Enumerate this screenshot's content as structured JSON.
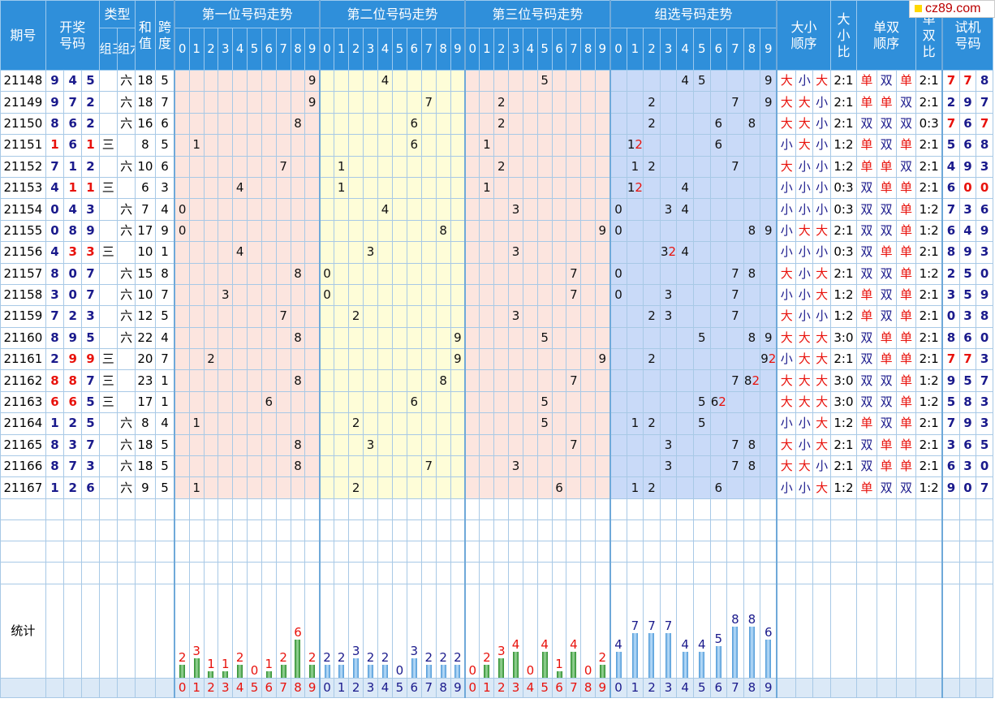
{
  "header": {
    "period": "期号",
    "draw": [
      "开奖",
      "号码"
    ],
    "type": "类型",
    "type_sub": [
      "组三",
      "组六"
    ],
    "sum": [
      "和",
      "值"
    ],
    "span": [
      "跨",
      "度"
    ],
    "pos1": "第一位号码走势",
    "pos2": "第二位号码走势",
    "pos3": "第三位号码走势",
    "group": "组选号码走势",
    "bs_order": [
      "大小",
      "顺序"
    ],
    "bs_ratio": [
      "大",
      "小",
      "比"
    ],
    "oe_order": [
      "单双",
      "顺序"
    ],
    "oe_ratio": [
      "单",
      "双",
      "比"
    ],
    "trial": [
      "试机",
      "号码"
    ],
    "digits": [
      "0",
      "1",
      "2",
      "3",
      "4",
      "5",
      "6",
      "7",
      "8",
      "9"
    ]
  },
  "rows": [
    {
      "p": "21148",
      "n": [
        "9",
        "4",
        "5"
      ],
      "nr": [
        0,
        0,
        0
      ],
      "t": "六",
      "s": "18",
      "k": "5",
      "bs": [
        "大",
        "小",
        "大"
      ],
      "bsr": "2:1",
      "oe": [
        "单",
        "双",
        "单"
      ],
      "oer": "2:1",
      "tr": [
        "7",
        "7",
        "8"
      ],
      "trr": [
        1,
        1,
        0
      ],
      "g": {
        "4": "4",
        "5": "5",
        "9": "9"
      }
    },
    {
      "p": "21149",
      "n": [
        "9",
        "7",
        "2"
      ],
      "nr": [
        0,
        0,
        0
      ],
      "t": "六",
      "s": "18",
      "k": "7",
      "bs": [
        "大",
        "大",
        "小"
      ],
      "bsr": "2:1",
      "oe": [
        "单",
        "单",
        "双"
      ],
      "oer": "2:1",
      "tr": [
        "2",
        "9",
        "7"
      ],
      "trr": [
        0,
        0,
        0
      ],
      "g": {
        "2": "2",
        "7": "7",
        "9": "9"
      }
    },
    {
      "p": "21150",
      "n": [
        "8",
        "6",
        "2"
      ],
      "nr": [
        0,
        0,
        0
      ],
      "t": "六",
      "s": "16",
      "k": "6",
      "bs": [
        "大",
        "大",
        "小"
      ],
      "bsr": "2:1",
      "oe": [
        "双",
        "双",
        "双"
      ],
      "oer": "0:3",
      "tr": [
        "7",
        "6",
        "7"
      ],
      "trr": [
        1,
        0,
        1
      ],
      "g": {
        "2": "2",
        "6": "6",
        "8": "8"
      }
    },
    {
      "p": "21151",
      "n": [
        "1",
        "6",
        "1"
      ],
      "nr": [
        1,
        0,
        1
      ],
      "t": "三",
      "s": "8",
      "k": "5",
      "bs": [
        "小",
        "大",
        "小"
      ],
      "bsr": "1:2",
      "oe": [
        "单",
        "双",
        "单"
      ],
      "oer": "2:1",
      "tr": [
        "5",
        "6",
        "8"
      ],
      "trr": [
        0,
        0,
        0
      ],
      "g": {
        "1": "12",
        "6": "6"
      }
    },
    {
      "p": "21152",
      "n": [
        "7",
        "1",
        "2"
      ],
      "nr": [
        0,
        0,
        0
      ],
      "t": "六",
      "s": "10",
      "k": "6",
      "bs": [
        "大",
        "小",
        "小"
      ],
      "bsr": "1:2",
      "oe": [
        "单",
        "单",
        "双"
      ],
      "oer": "2:1",
      "tr": [
        "4",
        "9",
        "3"
      ],
      "trr": [
        0,
        0,
        0
      ],
      "g": {
        "1": "1",
        "2": "2",
        "7": "7"
      }
    },
    {
      "p": "21153",
      "n": [
        "4",
        "1",
        "1"
      ],
      "nr": [
        0,
        1,
        1
      ],
      "t": "三",
      "s": "6",
      "k": "3",
      "bs": [
        "小",
        "小",
        "小"
      ],
      "bsr": "0:3",
      "oe": [
        "双",
        "单",
        "单"
      ],
      "oer": "2:1",
      "tr": [
        "6",
        "0",
        "0"
      ],
      "trr": [
        0,
        1,
        1
      ],
      "g": {
        "1": "12",
        "4": "4"
      }
    },
    {
      "p": "21154",
      "n": [
        "0",
        "4",
        "3"
      ],
      "nr": [
        0,
        0,
        0
      ],
      "t": "六",
      "s": "7",
      "k": "4",
      "bs": [
        "小",
        "小",
        "小"
      ],
      "bsr": "0:3",
      "oe": [
        "双",
        "双",
        "单"
      ],
      "oer": "1:2",
      "tr": [
        "7",
        "3",
        "6"
      ],
      "trr": [
        0,
        0,
        0
      ],
      "g": {
        "0": "0",
        "3": "3",
        "4": "4"
      }
    },
    {
      "p": "21155",
      "n": [
        "0",
        "8",
        "9"
      ],
      "nr": [
        0,
        0,
        0
      ],
      "t": "六",
      "s": "17",
      "k": "9",
      "bs": [
        "小",
        "大",
        "大"
      ],
      "bsr": "2:1",
      "oe": [
        "双",
        "双",
        "单"
      ],
      "oer": "1:2",
      "tr": [
        "6",
        "4",
        "9"
      ],
      "trr": [
        0,
        0,
        0
      ],
      "g": {
        "0": "0",
        "8": "8",
        "9": "9"
      }
    },
    {
      "p": "21156",
      "n": [
        "4",
        "3",
        "3"
      ],
      "nr": [
        0,
        1,
        1
      ],
      "t": "三",
      "s": "10",
      "k": "1",
      "bs": [
        "小",
        "小",
        "小"
      ],
      "bsr": "0:3",
      "oe": [
        "双",
        "单",
        "单"
      ],
      "oer": "2:1",
      "tr": [
        "8",
        "9",
        "3"
      ],
      "trr": [
        0,
        0,
        0
      ],
      "g": {
        "3": "32",
        "4": "4"
      }
    },
    {
      "p": "21157",
      "n": [
        "8",
        "0",
        "7"
      ],
      "nr": [
        0,
        0,
        0
      ],
      "t": "六",
      "s": "15",
      "k": "8",
      "bs": [
        "大",
        "小",
        "大"
      ],
      "bsr": "2:1",
      "oe": [
        "双",
        "双",
        "单"
      ],
      "oer": "1:2",
      "tr": [
        "2",
        "5",
        "0"
      ],
      "trr": [
        0,
        0,
        0
      ],
      "g": {
        "0": "0",
        "7": "7",
        "8": "8"
      }
    },
    {
      "p": "21158",
      "n": [
        "3",
        "0",
        "7"
      ],
      "nr": [
        0,
        0,
        0
      ],
      "t": "六",
      "s": "10",
      "k": "7",
      "bs": [
        "小",
        "小",
        "大"
      ],
      "bsr": "1:2",
      "oe": [
        "单",
        "双",
        "单"
      ],
      "oer": "2:1",
      "tr": [
        "3",
        "5",
        "9"
      ],
      "trr": [
        0,
        0,
        0
      ],
      "g": {
        "0": "0",
        "3": "3",
        "7": "7"
      }
    },
    {
      "p": "21159",
      "n": [
        "7",
        "2",
        "3"
      ],
      "nr": [
        0,
        0,
        0
      ],
      "t": "六",
      "s": "12",
      "k": "5",
      "bs": [
        "大",
        "小",
        "小"
      ],
      "bsr": "1:2",
      "oe": [
        "单",
        "双",
        "单"
      ],
      "oer": "2:1",
      "tr": [
        "0",
        "3",
        "8"
      ],
      "trr": [
        0,
        0,
        0
      ],
      "g": {
        "2": "2",
        "3": "3",
        "7": "7"
      }
    },
    {
      "p": "21160",
      "n": [
        "8",
        "9",
        "5"
      ],
      "nr": [
        0,
        0,
        0
      ],
      "t": "六",
      "s": "22",
      "k": "4",
      "bs": [
        "大",
        "大",
        "大"
      ],
      "bsr": "3:0",
      "oe": [
        "双",
        "单",
        "单"
      ],
      "oer": "2:1",
      "tr": [
        "8",
        "6",
        "0"
      ],
      "trr": [
        0,
        0,
        0
      ],
      "g": {
        "5": "5",
        "8": "8",
        "9": "9"
      }
    },
    {
      "p": "21161",
      "n": [
        "2",
        "9",
        "9"
      ],
      "nr": [
        0,
        1,
        1
      ],
      "t": "三",
      "s": "20",
      "k": "7",
      "bs": [
        "小",
        "大",
        "大"
      ],
      "bsr": "2:1",
      "oe": [
        "双",
        "单",
        "单"
      ],
      "oer": "2:1",
      "tr": [
        "7",
        "7",
        "3"
      ],
      "trr": [
        1,
        1,
        0
      ],
      "g": {
        "2": "2",
        "9": "92"
      }
    },
    {
      "p": "21162",
      "n": [
        "8",
        "8",
        "7"
      ],
      "nr": [
        1,
        1,
        0
      ],
      "t": "三",
      "s": "23",
      "k": "1",
      "bs": [
        "大",
        "大",
        "大"
      ],
      "bsr": "3:0",
      "oe": [
        "双",
        "双",
        "单"
      ],
      "oer": "1:2",
      "tr": [
        "9",
        "5",
        "7"
      ],
      "trr": [
        0,
        0,
        0
      ],
      "g": {
        "7": "7",
        "8": "82"
      }
    },
    {
      "p": "21163",
      "n": [
        "6",
        "6",
        "5"
      ],
      "nr": [
        1,
        1,
        0
      ],
      "t": "三",
      "s": "17",
      "k": "1",
      "bs": [
        "大",
        "大",
        "大"
      ],
      "bsr": "3:0",
      "oe": [
        "双",
        "双",
        "单"
      ],
      "oer": "1:2",
      "tr": [
        "5",
        "8",
        "3"
      ],
      "trr": [
        0,
        0,
        0
      ],
      "g": {
        "5": "5",
        "6": "62"
      }
    },
    {
      "p": "21164",
      "n": [
        "1",
        "2",
        "5"
      ],
      "nr": [
        0,
        0,
        0
      ],
      "t": "六",
      "s": "8",
      "k": "4",
      "bs": [
        "小",
        "小",
        "大"
      ],
      "bsr": "1:2",
      "oe": [
        "单",
        "双",
        "单"
      ],
      "oer": "2:1",
      "tr": [
        "7",
        "9",
        "3"
      ],
      "trr": [
        0,
        0,
        0
      ],
      "g": {
        "1": "1",
        "2": "2",
        "5": "5"
      }
    },
    {
      "p": "21165",
      "n": [
        "8",
        "3",
        "7"
      ],
      "nr": [
        0,
        0,
        0
      ],
      "t": "六",
      "s": "18",
      "k": "5",
      "bs": [
        "大",
        "小",
        "大"
      ],
      "bsr": "2:1",
      "oe": [
        "双",
        "单",
        "单"
      ],
      "oer": "2:1",
      "tr": [
        "3",
        "6",
        "5"
      ],
      "trr": [
        0,
        0,
        0
      ],
      "g": {
        "3": "3",
        "7": "7",
        "8": "8"
      }
    },
    {
      "p": "21166",
      "n": [
        "8",
        "7",
        "3"
      ],
      "nr": [
        0,
        0,
        0
      ],
      "t": "六",
      "s": "18",
      "k": "5",
      "bs": [
        "大",
        "大",
        "小"
      ],
      "bsr": "2:1",
      "oe": [
        "双",
        "单",
        "单"
      ],
      "oer": "2:1",
      "tr": [
        "6",
        "3",
        "0"
      ],
      "trr": [
        0,
        0,
        0
      ],
      "g": {
        "3": "3",
        "7": "7",
        "8": "8"
      }
    },
    {
      "p": "21167",
      "n": [
        "1",
        "2",
        "6"
      ],
      "nr": [
        0,
        0,
        0
      ],
      "t": "六",
      "s": "9",
      "k": "5",
      "bs": [
        "小",
        "小",
        "大"
      ],
      "bsr": "1:2",
      "oe": [
        "单",
        "双",
        "双"
      ],
      "oer": "1:2",
      "tr": [
        "9",
        "0",
        "7"
      ],
      "trr": [
        0,
        0,
        0
      ],
      "g": {
        "1": "1",
        "2": "2",
        "6": "6"
      }
    }
  ],
  "stats": {
    "label": "统计",
    "pos1": [
      "2",
      "3",
      "1",
      "1",
      "2",
      "0",
      "1",
      "2",
      "6",
      "2"
    ],
    "pos2": [
      "2",
      "2",
      "3",
      "2",
      "2",
      "0",
      "3",
      "2",
      "2",
      "2"
    ],
    "pos3": [
      "0",
      "2",
      "3",
      "4",
      "0",
      "4",
      "1",
      "4",
      "0",
      "2"
    ],
    "group": [
      "4",
      "7",
      "7",
      "7",
      "4",
      "4",
      "5",
      "8",
      "8",
      "6"
    ]
  },
  "logo": "cz89.com",
  "colors": {
    "header": "#2f8fda",
    "red": "#e8120c",
    "navy": "#1a1a8c",
    "pos_bg": "#fce5df",
    "pos2_bg": "#fefdd8",
    "group_bg": "#c9daf8"
  }
}
